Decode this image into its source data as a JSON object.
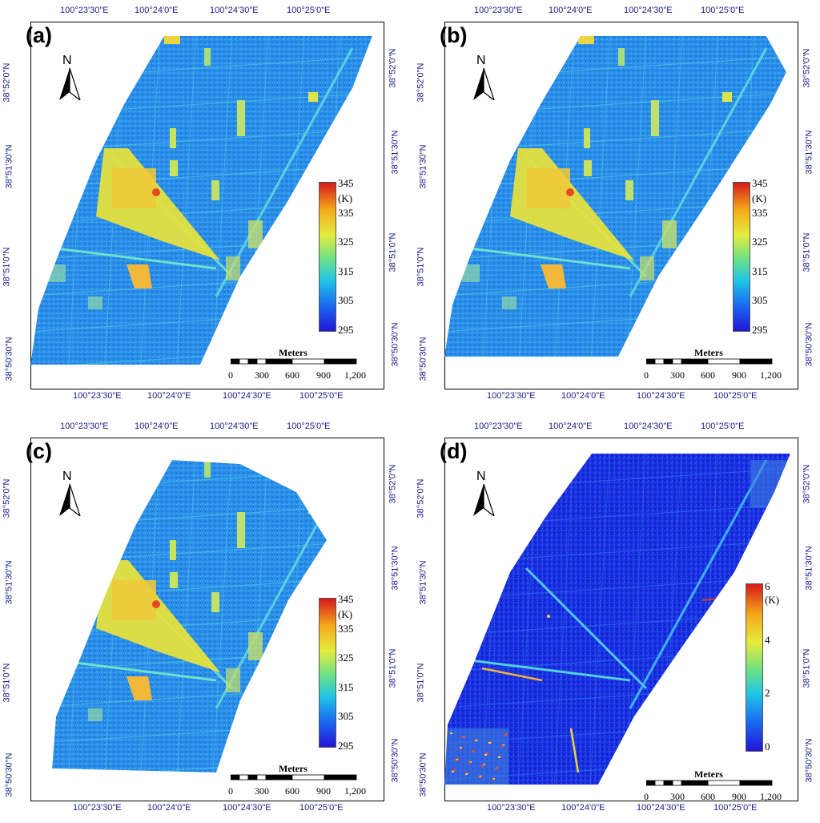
{
  "figure": {
    "panels": [
      {
        "label": "(a)",
        "legend": {
          "unit": "(K)",
          "ticks": [
            "345",
            "335",
            "325",
            "315",
            "305",
            "295"
          ],
          "colormap": "jet"
        }
      },
      {
        "label": "(b)",
        "legend": {
          "unit": "(K)",
          "ticks": [
            "345",
            "335",
            "325",
            "315",
            "305",
            "295"
          ],
          "colormap": "jet"
        }
      },
      {
        "label": "(c)",
        "legend": {
          "unit": "(K)",
          "ticks": [
            "345",
            "335",
            "325",
            "315",
            "305",
            "295"
          ],
          "colormap": "jet"
        }
      },
      {
        "label": "(d)",
        "legend": {
          "unit": "(K)",
          "ticks": [
            "6",
            "4",
            "2",
            "0"
          ],
          "colormap": "jet"
        }
      }
    ],
    "longitude_labels": [
      "100°23'30\"E",
      "100°24'0\"E",
      "100°24'30\"E",
      "100°25'0\"E"
    ],
    "latitude_labels": [
      "38°52'0\"N",
      "38°51'30\"N",
      "38°51'0\"N",
      "38°50'30\"N"
    ],
    "north_arrow": {
      "letter": "N",
      "icon": "north-arrow-icon"
    },
    "scale_bar": {
      "title": "Meters",
      "ticks": [
        "0",
        "300",
        "600",
        "900",
        "1,200"
      ]
    },
    "colors": {
      "coord_text": "#1a1a8c",
      "frame": "#000000"
    }
  }
}
